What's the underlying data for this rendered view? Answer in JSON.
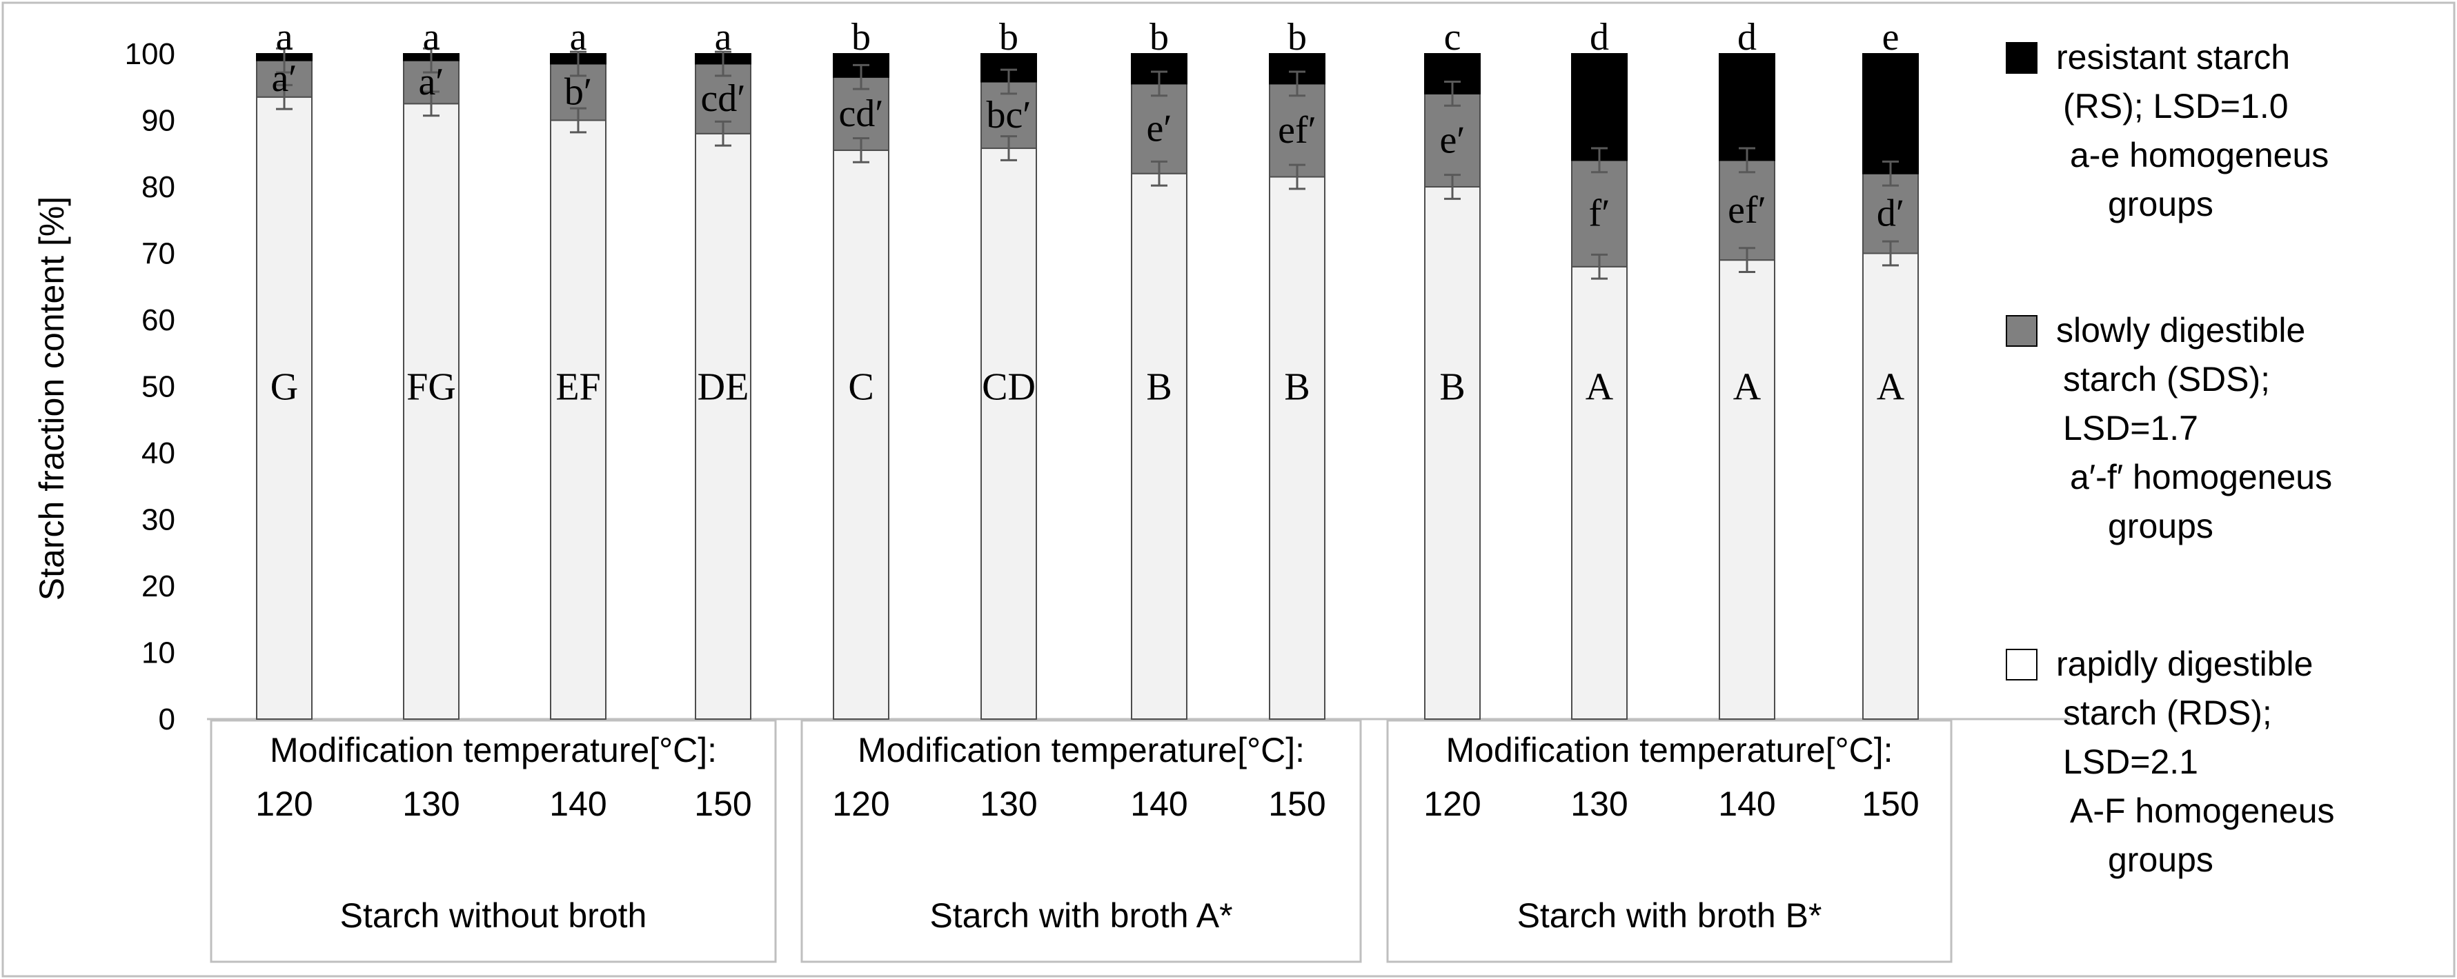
{
  "chart_data": {
    "type": "bar",
    "stacked": true,
    "ylabel": "Starch fraction content [%]",
    "ylim": [
      0,
      100
    ],
    "yticks": [
      0,
      10,
      20,
      30,
      40,
      50,
      60,
      70,
      80,
      90,
      100
    ],
    "grid": false,
    "legend_position": "right",
    "categories": [
      "120",
      "130",
      "140",
      "150",
      "120",
      "130",
      "140",
      "150",
      "120",
      "130",
      "140",
      "150"
    ],
    "groups": [
      {
        "title": "Modification temperature[°C]:",
        "name": "Starch without broth",
        "temperatures": [
          "120",
          "130",
          "140",
          "150"
        ]
      },
      {
        "title": "Modification temperature[°C]:",
        "name": "Starch with broth A*",
        "temperatures": [
          "120",
          "130",
          "140",
          "150"
        ]
      },
      {
        "title": "Modification temperature[°C]:",
        "name": "Starch with broth B*",
        "temperatures": [
          "120",
          "130",
          "140",
          "150"
        ]
      }
    ],
    "series": [
      {
        "name": "rapidly digestible starch (RDS)",
        "color": "#f2f2f2",
        "values": [
          93.5,
          92.5,
          90,
          88,
          85.5,
          85.8,
          82,
          81.5,
          80,
          68,
          69,
          70
        ],
        "error": [
          1.8,
          1.8,
          1.8,
          1.8,
          1.8,
          1.8,
          1.8,
          1.8,
          1.8,
          1.8,
          1.8,
          1.8
        ]
      },
      {
        "name": "slowly digestible starch (SDS)",
        "color": "#808080",
        "values": [
          5.5,
          6.5,
          8.5,
          10.5,
          11,
          10,
          13.5,
          14,
          14,
          16,
          15,
          12
        ],
        "error": [
          1.8,
          1.8,
          1.8,
          1.8,
          1.8,
          1.8,
          1.8,
          1.8,
          1.8,
          1.8,
          1.8,
          1.8
        ]
      },
      {
        "name": "resistant starch (RS)",
        "color": "#000000",
        "values": [
          1,
          1,
          1.5,
          1.5,
          3.5,
          4.2,
          4.5,
          4.5,
          6,
          16,
          16,
          18
        ],
        "error": [
          0,
          0,
          0,
          0,
          0,
          0,
          0,
          0,
          0,
          0,
          0,
          0
        ]
      }
    ],
    "annotations": {
      "rs_letters": [
        "a",
        "a",
        "a",
        "a",
        "b",
        "b",
        "b",
        "b",
        "c",
        "d",
        "d",
        "e"
      ],
      "sds_letters": [
        "a′",
        "a′",
        "b′",
        "cd′",
        "cd′",
        "bc′",
        "e′",
        "ef′",
        "e′",
        "f′",
        "ef′",
        "d′"
      ],
      "rds_letters": [
        "G",
        "FG",
        "EF",
        "DE",
        "C",
        "CD",
        "B",
        "B",
        "B",
        "A",
        "A",
        "A"
      ]
    },
    "legend": [
      {
        "name": "rs",
        "color": "#000000",
        "lines": [
          "resistant starch",
          "(RS); LSD=1.0",
          "a-e homogeneus",
          "groups"
        ]
      },
      {
        "name": "sds",
        "color": "#808080",
        "lines": [
          "slowly digestible",
          "starch (SDS);",
          "LSD=1.7",
          "a′-f′ homogeneus",
          "groups"
        ]
      },
      {
        "name": "rds",
        "color": "#ffffff",
        "lines": [
          "rapidly digestible",
          "starch (RDS);",
          "LSD=2.1",
          "A-F homogeneus",
          "groups"
        ]
      }
    ]
  }
}
